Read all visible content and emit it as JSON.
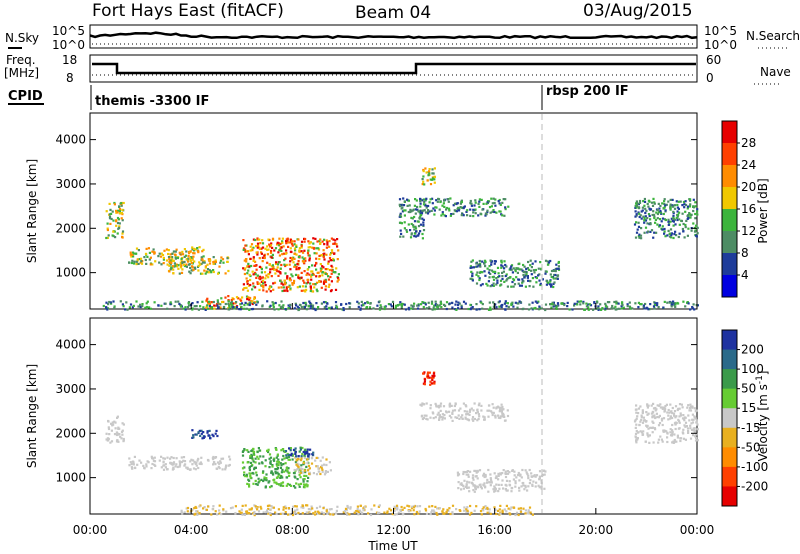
{
  "header": {
    "radar": "Fort Hays East (fitACF)",
    "beam": "Beam 04",
    "date": "03/Aug/2015"
  },
  "sky_panel": {
    "left_label": "N.Sky",
    "right_label": "N.Search",
    "ticks_left": [
      "10^5",
      "10^0"
    ],
    "ticks_right": [
      "10^5",
      "10^0"
    ]
  },
  "freq_panel": {
    "left_label_line1": "Freq.",
    "left_label_line2": "[MHz]",
    "right_label": "Nave",
    "ticks_left": [
      "18",
      "8"
    ],
    "ticks_right": [
      "60",
      "0"
    ]
  },
  "cpid_panel": {
    "label": "CPID",
    "modes": [
      {
        "name": "themis -3300 IF",
        "start_hour": 0,
        "end_hour": 18
      },
      {
        "name": "rbsp 200 IF",
        "start_hour": 18,
        "end_hour": 24
      }
    ]
  },
  "power_colorbar": {
    "title": "Power [dB]",
    "ticks": [
      "28",
      "24",
      "20",
      "16",
      "12",
      "8",
      "4"
    ],
    "colors": [
      "#e60000",
      "#ff4000",
      "#ff8c00",
      "#f0c800",
      "#3cb43c",
      "#4d8c64",
      "#1e3c9a",
      "#0000e0"
    ]
  },
  "velocity_colorbar": {
    "title": "Velocity [m s",
    "title_sup": "-1",
    "title_end": "]",
    "ticks": [
      "200",
      "100",
      "50",
      "15",
      "-15",
      "-50",
      "-100",
      "-200"
    ],
    "colors": [
      "#1e32a0",
      "#2a6a8a",
      "#3a9a4a",
      "#66cc33",
      "#c8c8c8",
      "#e8b020",
      "#ff8c00",
      "#ff4000",
      "#e60000"
    ]
  },
  "x_axis": {
    "label": "Time UT",
    "ticks": [
      "00:00",
      "04:00",
      "08:00",
      "12:00",
      "16:00",
      "20:00",
      "00:00"
    ]
  },
  "chart_data": {
    "type": "heatmap",
    "x_range_hours": [
      0,
      24
    ],
    "y_range_km": [
      180,
      4600
    ],
    "ylabel": "Slant Range [km]",
    "yticks": [
      1000,
      2000,
      3000,
      4000
    ],
    "mode_change_hour": 18,
    "power_regions": [
      {
        "t0": 0.6,
        "t1": 1.3,
        "r0": 1800,
        "r1": 2600,
        "level": "mid"
      },
      {
        "t0": 1.5,
        "t1": 4.5,
        "r0": 1200,
        "r1": 1600,
        "level": "mid"
      },
      {
        "t0": 3.0,
        "t1": 5.5,
        "r0": 1000,
        "r1": 1400,
        "level": "mid"
      },
      {
        "t0": 6.0,
        "t1": 9.8,
        "r0": 600,
        "r1": 1800,
        "level": "high"
      },
      {
        "t0": 12.2,
        "t1": 13.2,
        "r0": 1800,
        "r1": 2700,
        "level": "low"
      },
      {
        "t0": 13.0,
        "t1": 16.5,
        "r0": 2300,
        "r1": 2700,
        "level": "low"
      },
      {
        "t0": 13.1,
        "t1": 13.6,
        "r0": 3000,
        "r1": 3400,
        "level": "mid"
      },
      {
        "t0": 15.0,
        "t1": 18.5,
        "r0": 700,
        "r1": 1300,
        "level": "low"
      },
      {
        "t0": 21.5,
        "t1": 24.0,
        "r0": 1800,
        "r1": 2700,
        "level": "low"
      },
      {
        "t0": 4.5,
        "t1": 6.5,
        "r0": 200,
        "r1": 500,
        "level": "high"
      },
      {
        "t0": 0.5,
        "t1": 24.0,
        "r0": 180,
        "r1": 380,
        "level": "low"
      }
    ],
    "velocity_regions": [
      {
        "t0": 0.6,
        "t1": 1.3,
        "r0": 1800,
        "r1": 2400,
        "level": "neutral"
      },
      {
        "t0": 1.5,
        "t1": 5.5,
        "r0": 1200,
        "r1": 1500,
        "level": "neutral"
      },
      {
        "t0": 6.0,
        "t1": 8.6,
        "r0": 800,
        "r1": 1700,
        "level": "pos_mid"
      },
      {
        "t0": 8.0,
        "t1": 9.5,
        "r0": 1100,
        "r1": 1500,
        "level": "neg_low"
      },
      {
        "t0": 7.5,
        "t1": 8.8,
        "r0": 1500,
        "r1": 1700,
        "level": "pos_high"
      },
      {
        "t0": 4.0,
        "t1": 5.0,
        "r0": 1900,
        "r1": 2100,
        "level": "pos_high"
      },
      {
        "t0": 13.0,
        "t1": 16.5,
        "r0": 2300,
        "r1": 2700,
        "level": "neutral"
      },
      {
        "t0": 13.1,
        "t1": 13.6,
        "r0": 3100,
        "r1": 3400,
        "level": "neg_high"
      },
      {
        "t0": 14.5,
        "t1": 18.0,
        "r0": 700,
        "r1": 1200,
        "level": "neutral"
      },
      {
        "t0": 21.5,
        "t1": 24.0,
        "r0": 1800,
        "r1": 2700,
        "level": "neutral"
      },
      {
        "t0": 3.5,
        "t1": 17.5,
        "r0": 180,
        "r1": 400,
        "level": "neg_low"
      }
    ]
  }
}
